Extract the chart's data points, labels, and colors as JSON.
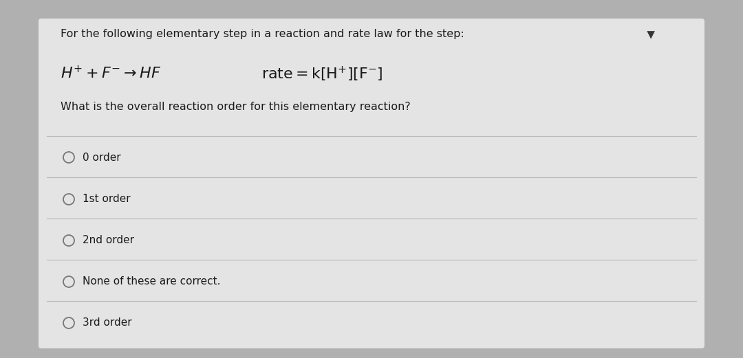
{
  "bg_color": "#b0b0b0",
  "card_color": "#e8e8e8",
  "card_inner_color": "#efefef",
  "text_color": "#1a1a1a",
  "separator_color": "#b8b8b8",
  "header_text": "For the following elementary step in a reaction and rate law for the step:",
  "question_text": "What is the overall reaction order for this elementary reaction?",
  "options": [
    "0 order",
    "1st order",
    "2nd order",
    "None of these are correct.",
    "3rd order"
  ],
  "header_fontsize": 11.5,
  "reaction_fontsize": 16,
  "question_fontsize": 11.5,
  "option_fontsize": 11,
  "radio_color": "#777777",
  "bookmark_color": "#333333"
}
